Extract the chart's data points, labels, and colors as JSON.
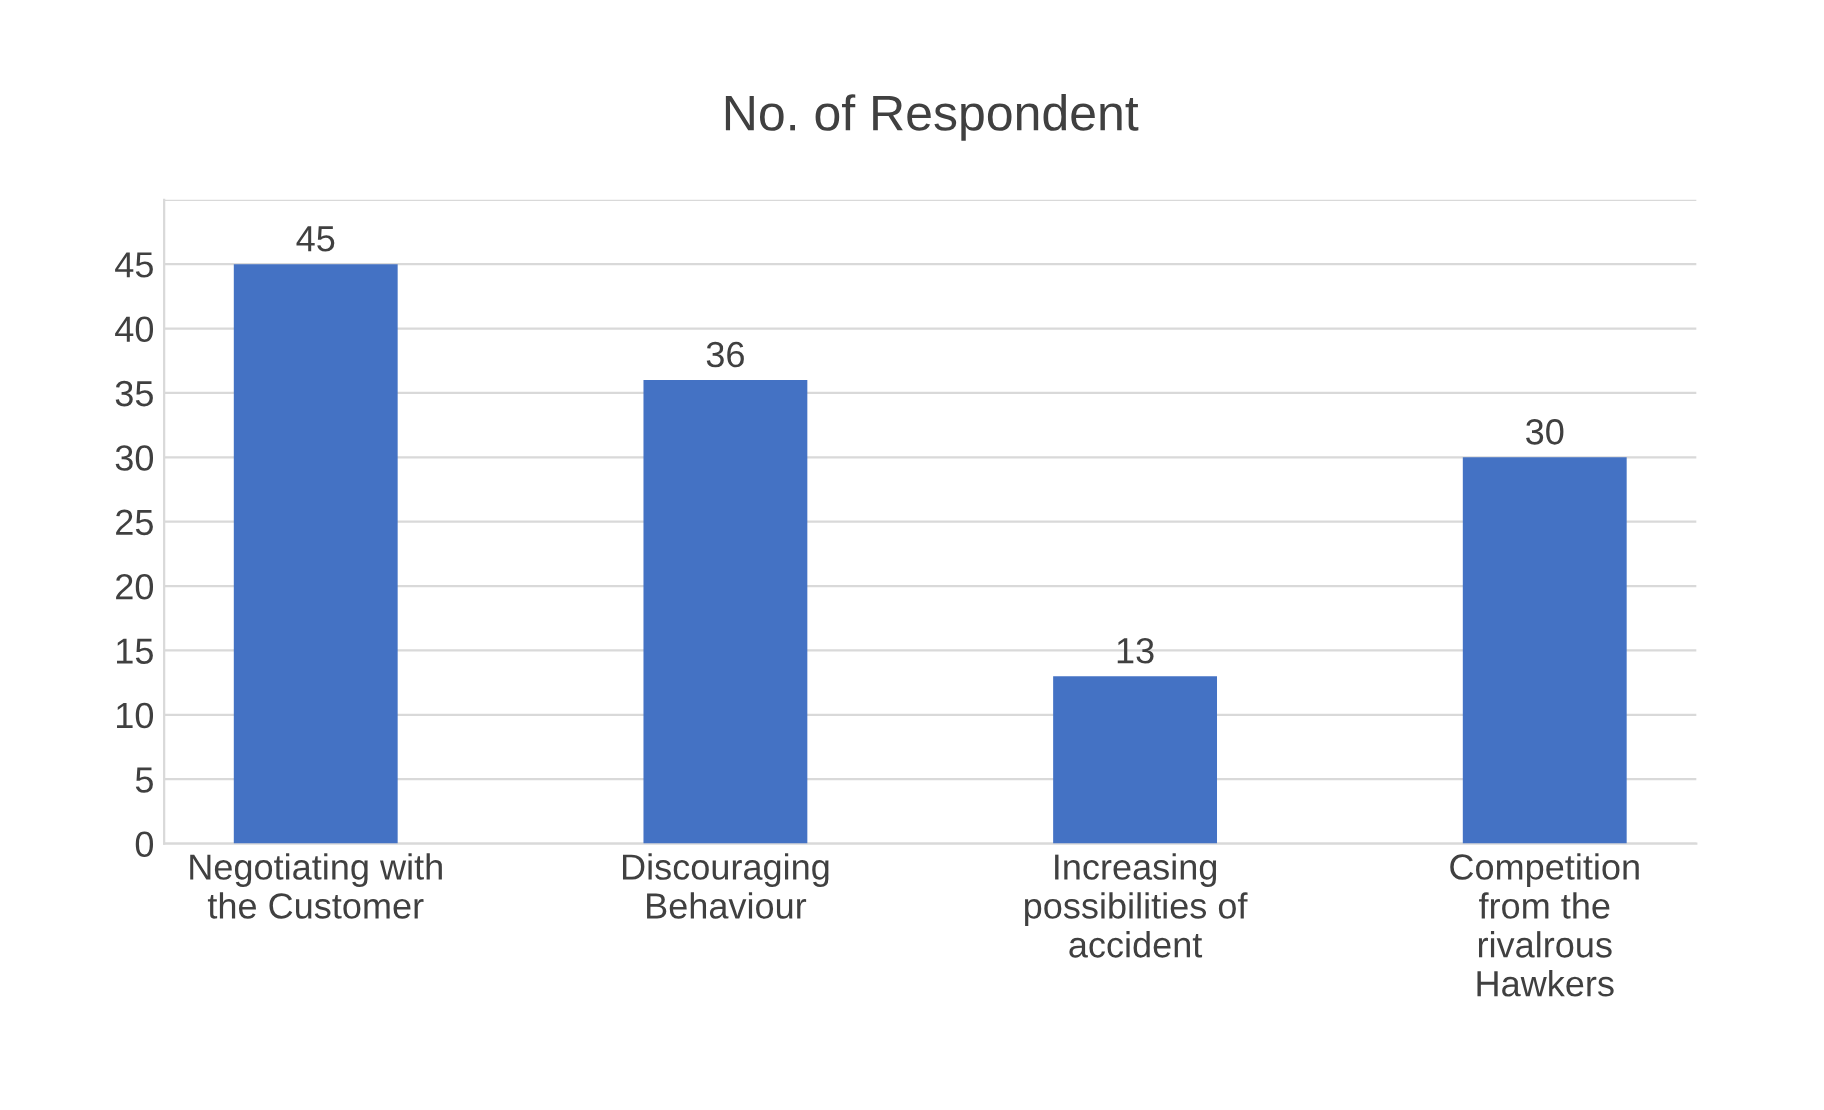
{
  "chart_data": {
    "type": "bar",
    "title": "No. of Respondent",
    "categories": [
      "Negotiating with\nthe Customer",
      "Discouraging\nBehaviour",
      "Increasing\npossibilities of\naccident",
      "Competition\nfrom the\nrivalrous\nHawkers"
    ],
    "values": [
      45,
      36,
      13,
      30
    ],
    "color": "#4472c4",
    "ylim": [
      0,
      50
    ],
    "yticks": [
      0,
      5,
      10,
      15,
      20,
      25,
      30,
      35,
      40,
      45,
      {
        "value": 50,
        "label": null
      }
    ],
    "grid": "y",
    "data_labels": true
  }
}
